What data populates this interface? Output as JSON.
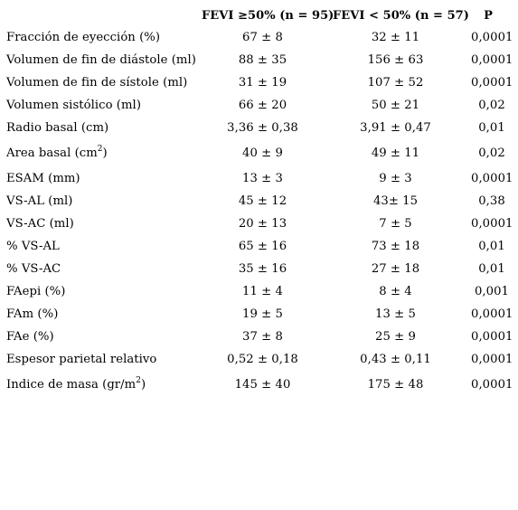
{
  "header": {
    "col_fevi_high": "FEVI ≥50% (n = 95)",
    "col_fevi_low": "FEVI < 50% (n = 57)",
    "col_p": "P"
  },
  "rows": [
    {
      "label": "Fracción de eyección (%)",
      "fevi_high": "67 ± 8",
      "fevi_low": "32 ± 11",
      "p": "0,0001"
    },
    {
      "label": "Volumen de fin de diástole (ml)",
      "fevi_high": "88 ± 35",
      "fevi_low": "156 ± 63",
      "p": "0,0001"
    },
    {
      "label": "Volumen de fin de sístole (ml)",
      "fevi_high": "31 ± 19",
      "fevi_low": "107 ± 52",
      "p": "0,0001"
    },
    {
      "label": "Volumen sistólico (ml)",
      "fevi_high": "66 ± 20",
      "fevi_low": "50 ± 21",
      "p": "0,02"
    },
    {
      "label": "Radio basal (cm)",
      "fevi_high": "3,36 ± 0,38",
      "fevi_low": "3,91 ± 0,47",
      "p": "0,01"
    },
    {
      "label": "Area basal (cm",
      "label_sup": "2",
      "label_suffix": ")",
      "fevi_high": "40 ± 9",
      "fevi_low": "49 ± 11",
      "p": "0,02"
    },
    {
      "label": "ESAM (mm)",
      "fevi_high": "13 ± 3",
      "fevi_low": "9 ± 3",
      "p": "0,0001"
    },
    {
      "label": "VS-AL (ml)",
      "fevi_high": "45 ± 12",
      "fevi_low": "43± 15",
      "p": "0,38"
    },
    {
      "label": "VS-AC (ml)",
      "fevi_high": "20 ± 13",
      "fevi_low": "7 ± 5",
      "p": "0,0001"
    },
    {
      "label": "% VS-AL",
      "fevi_high": "65 ± 16",
      "fevi_low": "73 ± 18",
      "p": "0,01"
    },
    {
      "label": "% VS-AC",
      "fevi_high": "35 ± 16",
      "fevi_low": "27 ± 18",
      "p": "0,01"
    },
    {
      "label": "FAepi (%)",
      "fevi_high": "11 ± 4",
      "fevi_low": "8 ± 4",
      "p": "0,001"
    },
    {
      "label": "FAm (%)",
      "fevi_high": "19 ± 5",
      "fevi_low": "13 ± 5",
      "p": "0,0001"
    },
    {
      "label": "FAe (%)",
      "fevi_high": "37 ± 8",
      "fevi_low": "25 ± 9",
      "p": "0,0001"
    },
    {
      "label": "Espesor parietal relativo",
      "fevi_high": "0,52 ± 0,18",
      "fevi_low": "0,43 ± 0,11",
      "p": "0,0001"
    },
    {
      "label": "Indice de masa (gr/m",
      "label_sup": "2",
      "label_suffix": ")",
      "fevi_high": "145 ± 40",
      "fevi_low": "175 ± 48",
      "p": "0,0001"
    }
  ]
}
